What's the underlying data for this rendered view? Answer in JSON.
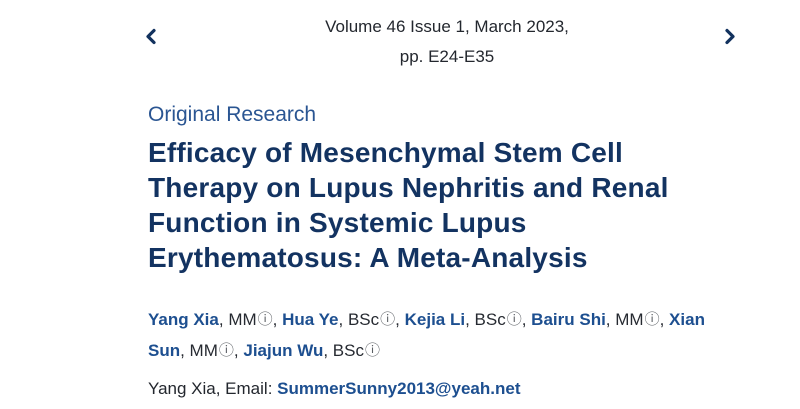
{
  "header": {
    "issue_line1": "Volume 46 Issue 1, March 2023,",
    "issue_line2": "pp. E24-E35"
  },
  "article": {
    "category": "Original Research",
    "title": "Efficacy of Mesenchymal Stem Cell Therapy on Lupus Nephritis and Renal Function in Systemic Lupus Erythematosus: A Meta-Analysis",
    "authors": [
      {
        "name": "Yang Xia",
        "degree": "MM"
      },
      {
        "name": "Hua Ye",
        "degree": "BSc"
      },
      {
        "name": "Kejia Li",
        "degree": "BSc"
      },
      {
        "name": "Bairu Shi",
        "degree": "MM"
      },
      {
        "name": "Xian Sun",
        "degree": "MM"
      },
      {
        "name": "Jiajun Wu",
        "degree": "BSc"
      }
    ],
    "degree_separator": ", ",
    "author_separator": ", ",
    "correspondence_prefix": "Yang Xia, Email: ",
    "correspondence_email": "SummerSunny2013@yeah.net"
  },
  "icons": {
    "info_glyph": "ⓘ",
    "chevron_left": "chevron-left",
    "chevron_right": "chevron-right"
  },
  "colors": {
    "title": "#133361",
    "category": "#2a5592",
    "link": "#1d4f90",
    "body_text": "#23272e",
    "info_icon": "#5a5e63",
    "chevron": "#12325e"
  }
}
